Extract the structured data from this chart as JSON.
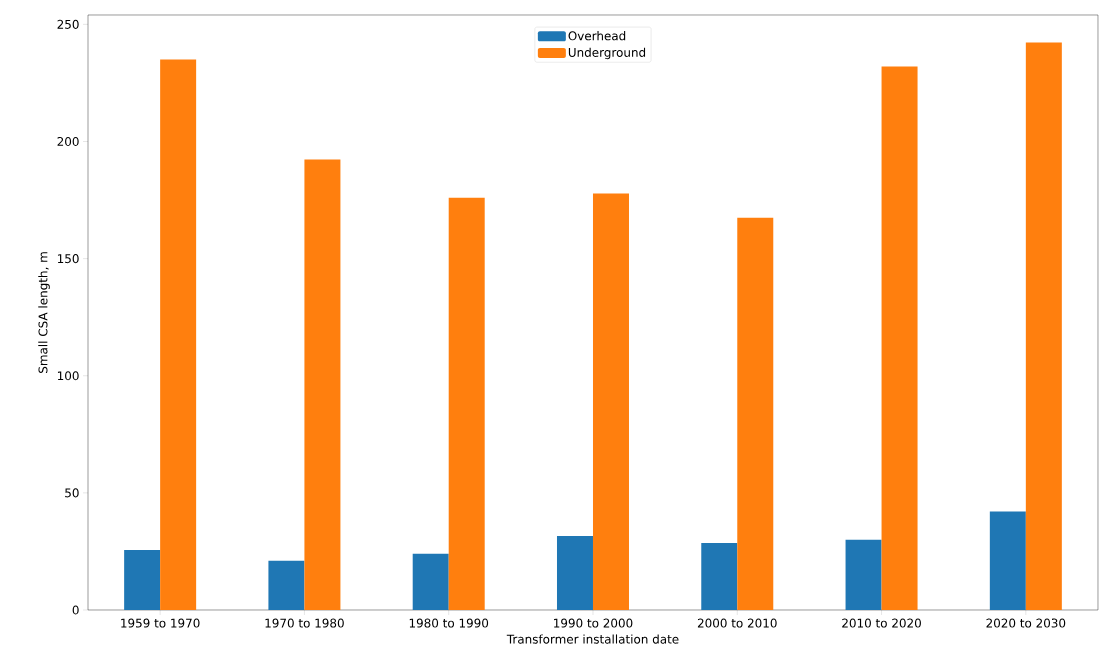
{
  "chart_data": {
    "type": "bar",
    "xlabel": "Transformer installation date",
    "ylabel": "Small CSA length, m",
    "categories": [
      "1959 to 1970",
      "1970 to 1980",
      "1980 to 1990",
      "1990 to 2000",
      "2000 to 2010",
      "2010 to 2020",
      "2020 to 2030"
    ],
    "series": [
      {
        "name": "Overhead",
        "color": "#1f77b4",
        "values": [
          25.6,
          21,
          24,
          31.6,
          28.6,
          30,
          42
        ]
      },
      {
        "name": "Underground",
        "color": "#ff7f0e",
        "values": [
          235,
          192.3,
          176,
          177.8,
          167.5,
          232,
          242.3
        ]
      }
    ],
    "ylim": [
      0,
      254
    ],
    "yticks": [
      0,
      50,
      100,
      150,
      200,
      250
    ],
    "grid": false,
    "legend": "top"
  }
}
